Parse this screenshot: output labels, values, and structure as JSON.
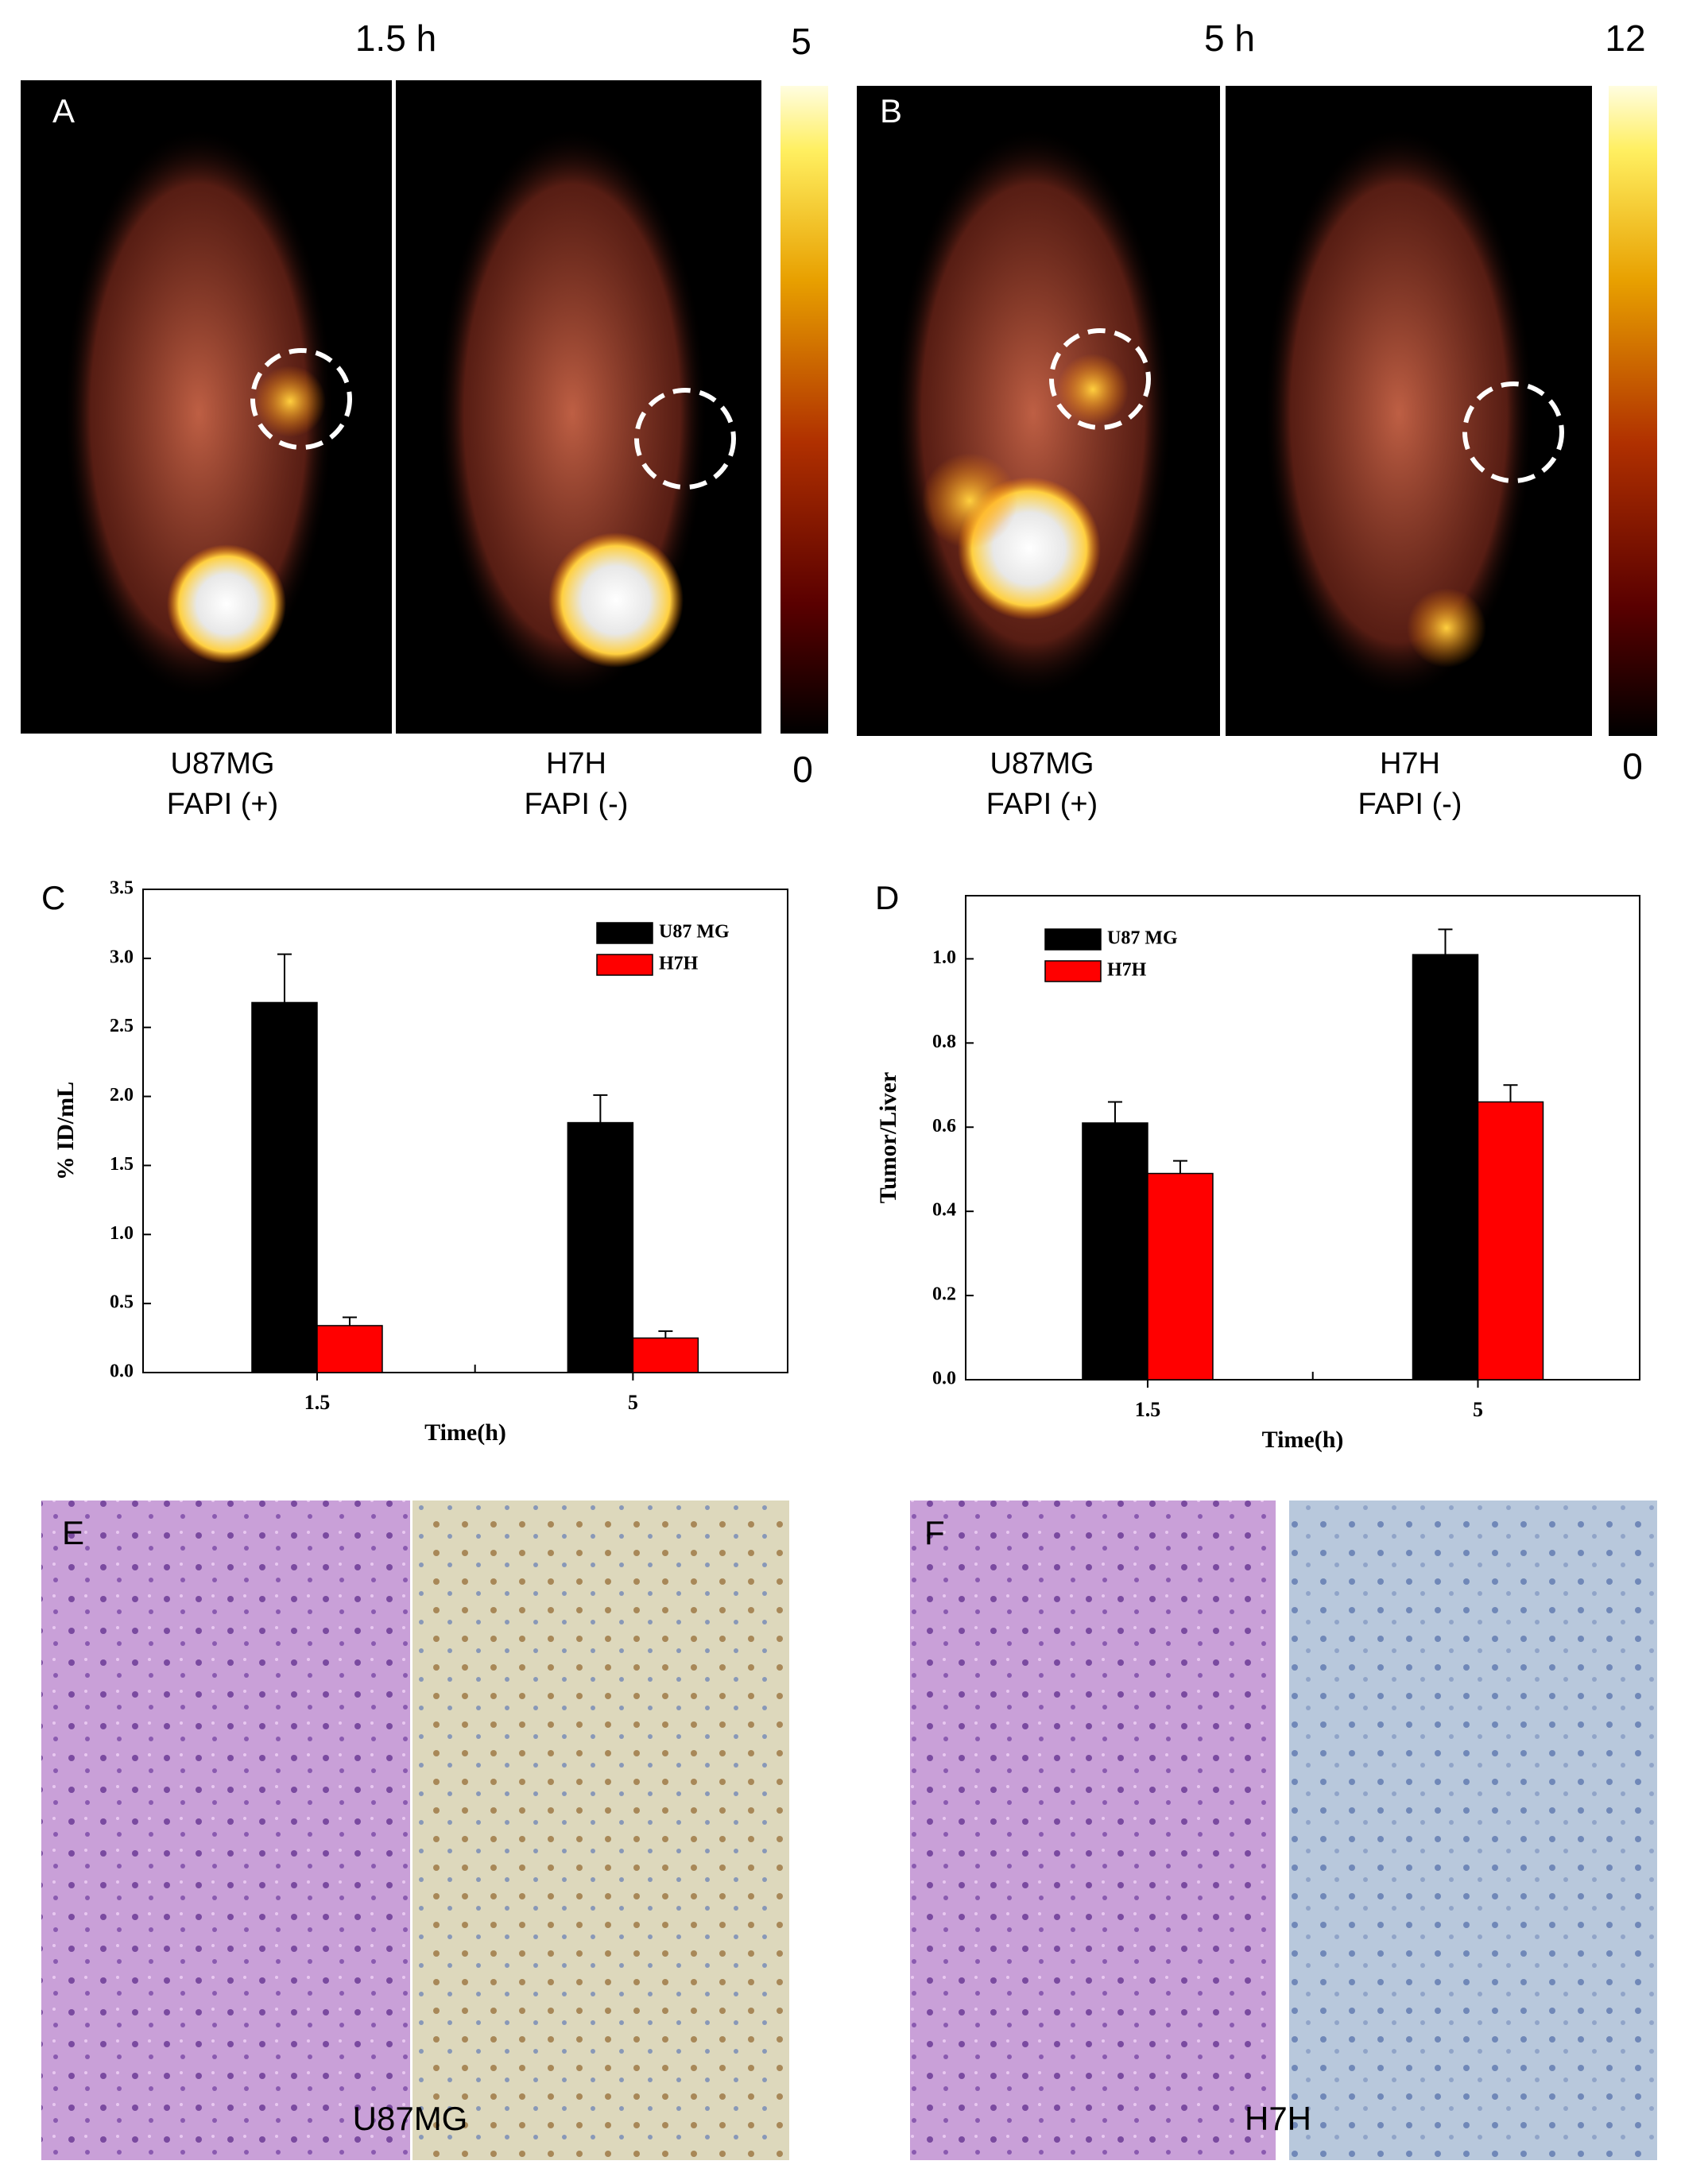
{
  "panel_a": {
    "label": "A",
    "time": "1.5 h",
    "scale_max": 5,
    "scale_min": 0,
    "images": [
      {
        "name": "U87MG",
        "status": "FAPI (+)"
      },
      {
        "name": "H7H",
        "status": "FAPI (-)"
      }
    ]
  },
  "panel_b": {
    "label": "B",
    "time": "5 h",
    "scale_max": 12,
    "scale_min": 0,
    "images": [
      {
        "name": "U87MG",
        "status": "FAPI (+)"
      },
      {
        "name": "H7H",
        "status": "FAPI (-)"
      }
    ]
  },
  "chart_data": [
    {
      "type": "bar",
      "panel_label": "C",
      "x_label": "Time(h)",
      "y_label": "% ID/mL",
      "categories": [
        "1.5",
        "5"
      ],
      "series": [
        {
          "name": "U87 MG",
          "color": "#000000",
          "values": [
            2.68,
            1.81
          ],
          "errors": [
            0.35,
            0.2
          ]
        },
        {
          "name": "H7H",
          "color": "#ff0000",
          "values": [
            0.34,
            0.25
          ],
          "errors": [
            0.06,
            0.05
          ]
        }
      ],
      "ylim": [
        0,
        3.5
      ],
      "yticks": [
        {
          "value": 0,
          "label": "0.0"
        },
        {
          "value": 0.5,
          "label": "0.5"
        },
        {
          "value": 1,
          "label": "1.0"
        },
        {
          "value": 1.5,
          "label": "1.5"
        },
        {
          "value": 2,
          "label": "2.0"
        },
        {
          "value": 2.5,
          "label": "2.5"
        },
        {
          "value": 3,
          "label": "3.0"
        },
        {
          "value": 3.5,
          "label": "3.5"
        }
      ],
      "legend": "upper right"
    },
    {
      "type": "bar",
      "panel_label": "D",
      "x_label": "Time(h)",
      "y_label": "Tumor/Liver",
      "categories": [
        "1.5",
        "5"
      ],
      "series": [
        {
          "name": "U87 MG",
          "color": "#000000",
          "values": [
            0.61,
            1.01
          ],
          "errors": [
            0.05,
            0.06
          ]
        },
        {
          "name": "H7H",
          "color": "#ff0000",
          "values": [
            0.49,
            0.66
          ],
          "errors": [
            0.03,
            0.04
          ]
        }
      ],
      "ylim": [
        0,
        1.15
      ],
      "yticks": [
        {
          "value": 0,
          "label": "0.0"
        },
        {
          "value": 0.2,
          "label": "0.2"
        },
        {
          "value": 0.4,
          "label": "0.4"
        },
        {
          "value": 0.6,
          "label": "0.6"
        },
        {
          "value": 0.8,
          "label": "0.8"
        },
        {
          "value": 1,
          "label": "1.0"
        }
      ],
      "legend": "upper left"
    }
  ],
  "panel_e": {
    "label": "E",
    "caption": "U87MG"
  },
  "panel_f": {
    "label": "F",
    "caption": "H7H"
  }
}
